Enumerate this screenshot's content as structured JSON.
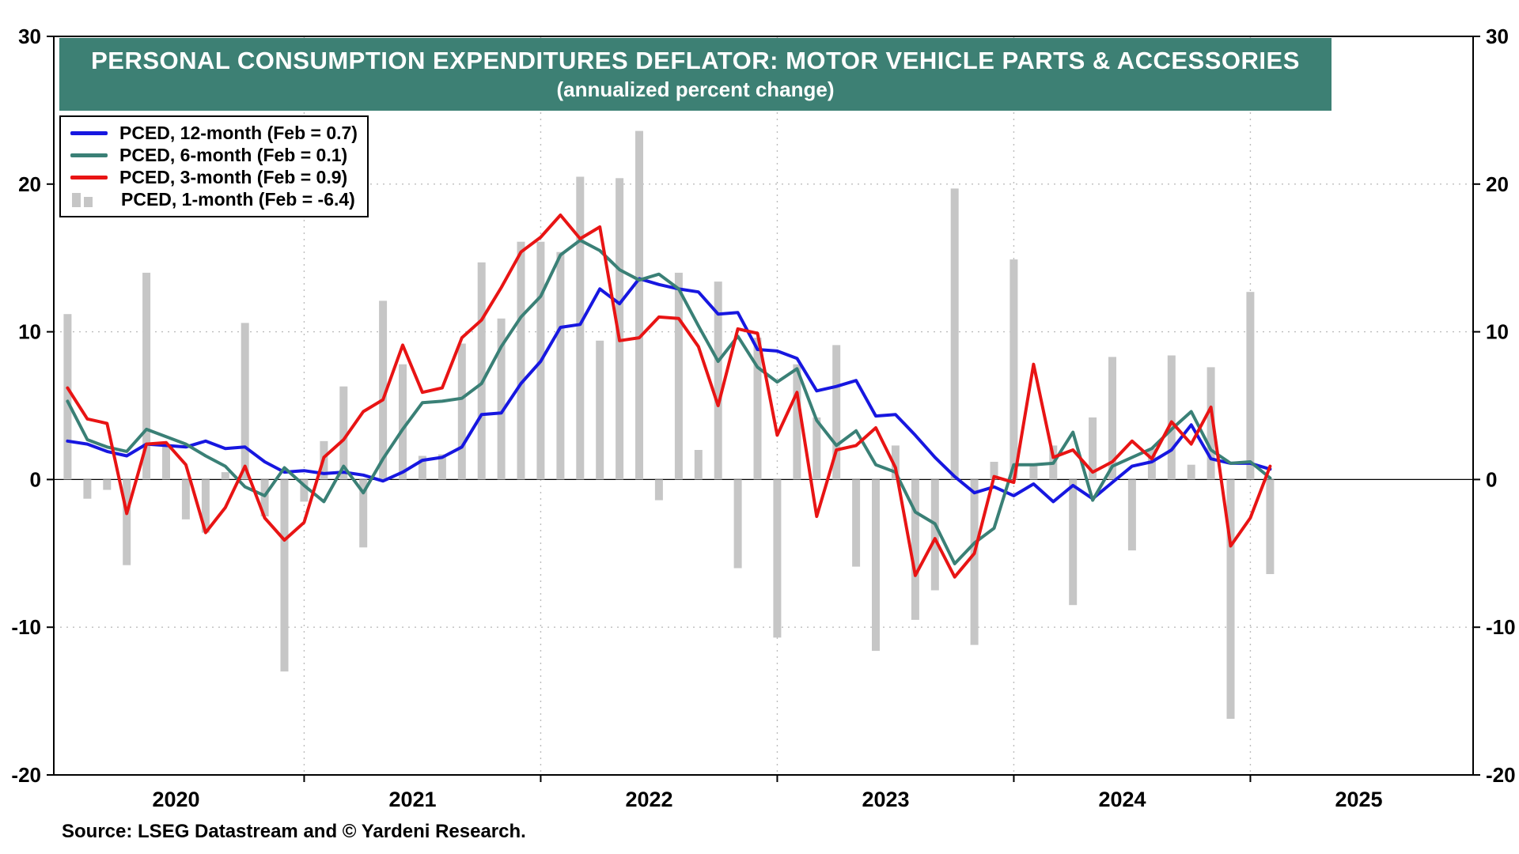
{
  "header": {
    "title": "PERSONAL CONSUMPTION EXPENDITURES DEFLATOR: MOTOR VEHICLE PARTS & ACCESSORIES",
    "subtitle": "(annualized percent change)",
    "banner_color": "#3d8074"
  },
  "legend": {
    "items": [
      {
        "label": "PCED, 12-month (Feb = 0.7)",
        "color": "#1717e0",
        "glyph": "line"
      },
      {
        "label": "PCED, 6-month (Feb = 0.1)",
        "color": "#3a8076",
        "glyph": "line"
      },
      {
        "label": "PCED, 3-month (Feb = 0.9)",
        "color": "#e81414",
        "glyph": "line"
      },
      {
        "label": "PCED, 1-month (Feb = -6.4)",
        "color": "#c6c6c6",
        "glyph": "bars"
      }
    ]
  },
  "axis": {
    "y_ticks": [
      -20,
      -10,
      0,
      10,
      20,
      30
    ],
    "y_min": -20,
    "y_max": 30,
    "year_labels": [
      "2020",
      "2021",
      "2022",
      "2023",
      "2024",
      "2025"
    ]
  },
  "source": "Source: LSEG Datastream and © Yardeni Research.",
  "chart_data": {
    "type": "mixed-line-bar",
    "title": "PERSONAL CONSUMPTION EXPENDITURES DEFLATOR: MOTOR VEHICLE PARTS & ACCESSORIES",
    "subtitle": "(annualized percent change)",
    "ylabel": "annualized percent change",
    "ylim": [
      -20,
      30
    ],
    "x_axis_start": "2020-01",
    "x_axis_end": "2025-12",
    "grid": "dotted gray lines every 10 y-units and at January of each year; solid zero line",
    "legend_position": "top-left",
    "months": [
      "2020-01",
      "2020-02",
      "2020-03",
      "2020-04",
      "2020-05",
      "2020-06",
      "2020-07",
      "2020-08",
      "2020-09",
      "2020-10",
      "2020-11",
      "2020-12",
      "2021-01",
      "2021-02",
      "2021-03",
      "2021-04",
      "2021-05",
      "2021-06",
      "2021-07",
      "2021-08",
      "2021-09",
      "2021-10",
      "2021-11",
      "2021-12",
      "2022-01",
      "2022-02",
      "2022-03",
      "2022-04",
      "2022-05",
      "2022-06",
      "2022-07",
      "2022-08",
      "2022-09",
      "2022-10",
      "2022-11",
      "2022-12",
      "2023-01",
      "2023-02",
      "2023-03",
      "2023-04",
      "2023-05",
      "2023-06",
      "2023-07",
      "2023-08",
      "2023-09",
      "2023-10",
      "2023-11",
      "2023-12",
      "2024-01",
      "2024-02",
      "2024-03",
      "2024-04",
      "2024-05",
      "2024-06",
      "2024-07",
      "2024-08",
      "2024-09",
      "2024-10",
      "2024-11",
      "2024-12",
      "2025-01",
      "2025-02"
    ],
    "series": [
      {
        "name": "PCED, 12-month annualized % change",
        "type": "line",
        "color": "#1717e0",
        "values": [
          2.6,
          2.4,
          1.9,
          1.6,
          2.4,
          2.3,
          2.2,
          2.6,
          2.1,
          2.2,
          1.2,
          0.5,
          0.6,
          0.4,
          0.5,
          0.3,
          -0.1,
          0.5,
          1.3,
          1.5,
          2.2,
          4.4,
          4.5,
          6.5,
          8.0,
          10.3,
          10.5,
          12.9,
          11.9,
          13.6,
          13.2,
          12.9,
          12.7,
          11.2,
          11.3,
          8.8,
          8.7,
          8.2,
          6.0,
          6.3,
          6.7,
          4.3,
          4.4,
          3.0,
          1.5,
          0.2,
          -0.9,
          -0.5,
          -1.1,
          -0.3,
          -1.5,
          -0.4,
          -1.3,
          -0.2,
          0.9,
          1.2,
          2.0,
          3.7,
          1.4,
          1.1,
          1.1,
          0.7
        ]
      },
      {
        "name": "PCED, 6-month annualized % change",
        "type": "line",
        "color": "#3a8076",
        "values": [
          5.3,
          2.7,
          2.2,
          1.9,
          3.4,
          2.9,
          2.4,
          1.6,
          0.9,
          -0.5,
          -1.1,
          0.8,
          -0.4,
          -1.5,
          0.9,
          -0.9,
          1.4,
          3.4,
          5.2,
          5.3,
          5.5,
          6.5,
          9.0,
          11.0,
          12.4,
          15.2,
          16.2,
          15.5,
          14.2,
          13.5,
          13.9,
          12.9,
          10.4,
          8.0,
          9.7,
          7.6,
          6.6,
          7.5,
          4.0,
          2.3,
          3.3,
          1.0,
          0.5,
          -2.2,
          -3.0,
          -5.7,
          -4.3,
          -3.3,
          1.0,
          1.0,
          1.1,
          3.2,
          -1.4,
          0.9,
          1.5,
          2.1,
          3.4,
          4.6,
          2.0,
          1.1,
          1.2,
          0.1
        ]
      },
      {
        "name": "PCED, 3-month annualized % change",
        "type": "line",
        "color": "#e81414",
        "values": [
          6.2,
          4.1,
          3.8,
          -2.3,
          2.4,
          2.5,
          1.0,
          -3.6,
          -1.9,
          0.9,
          -2.6,
          -4.1,
          -2.9,
          1.5,
          2.7,
          4.6,
          5.4,
          9.1,
          5.9,
          6.2,
          9.6,
          10.8,
          13.0,
          15.4,
          16.4,
          17.9,
          16.3,
          17.1,
          9.4,
          9.6,
          11.0,
          10.9,
          9.0,
          5.0,
          10.2,
          9.9,
          3.0,
          5.9,
          -2.5,
          2.0,
          2.3,
          3.5,
          0.8,
          -6.5,
          -4.0,
          -6.6,
          -5.0,
          0.2,
          -0.2,
          7.8,
          1.5,
          2.0,
          0.5,
          1.2,
          2.6,
          1.4,
          3.9,
          2.4,
          4.9,
          -4.5,
          -2.6,
          0.9
        ]
      },
      {
        "name": "PCED, 1-month annualized % change",
        "type": "bar",
        "color": "#c6c6c6",
        "values": [
          11.2,
          -1.3,
          -0.7,
          -5.8,
          14.0,
          2.3,
          -2.7,
          -3.6,
          0.5,
          10.6,
          -2.5,
          -13.0,
          -1.5,
          2.6,
          6.3,
          -4.6,
          12.1,
          7.8,
          1.6,
          1.7,
          9.2,
          14.7,
          10.9,
          16.1,
          16.1,
          15.4,
          20.5,
          9.4,
          20.4,
          23.6,
          -1.4,
          14.0,
          2.0,
          13.4,
          -6.0,
          9.6,
          -10.7,
          7.8,
          4.2,
          9.1,
          -5.9,
          -11.6,
          2.3,
          -9.5,
          -7.5,
          19.7,
          -11.2,
          1.2,
          14.9,
          1.1,
          2.3,
          -8.5,
          4.2,
          8.3,
          -4.8,
          2.1,
          8.4,
          1.0,
          7.6,
          -16.2,
          12.7,
          -6.4
        ]
      }
    ]
  }
}
